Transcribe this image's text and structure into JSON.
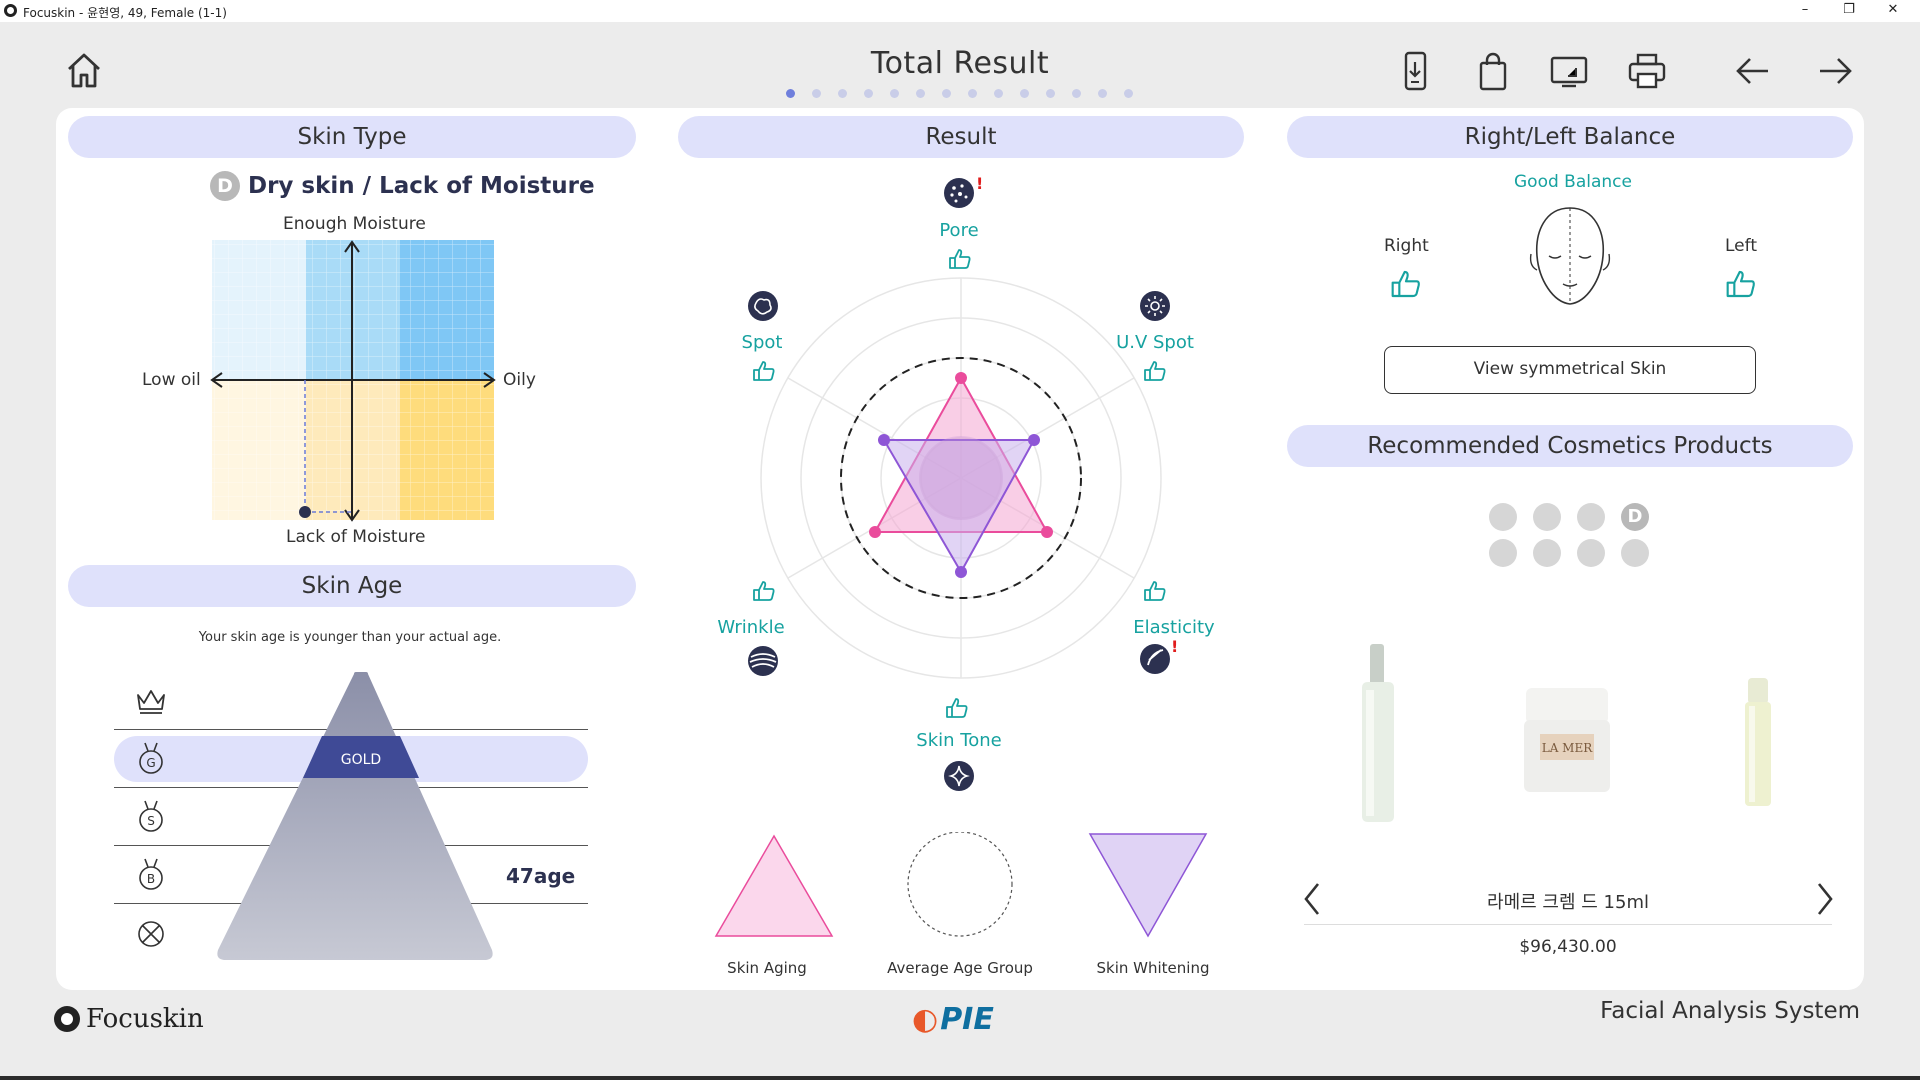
{
  "window": {
    "title": "Focuskin - 윤현영, 49, Female (1-1)",
    "minimize": "–",
    "maximize": "❐",
    "close": "✕"
  },
  "header": {
    "title": "Total Result",
    "page_count": 14,
    "active_page": 1
  },
  "skin_type": {
    "header": "Skin Type",
    "badge": "D",
    "result": "Dry skin / Lack of Moisture",
    "top_label": "Enough Moisture",
    "bottom_label": "Lack of Moisture",
    "left_label": "Low oil",
    "right_label": "Oily"
  },
  "skin_age": {
    "header": "Skin Age",
    "message": "Your skin age is younger than your actual age.",
    "tier_label": "GOLD",
    "age_value": "47age",
    "tier_badges": [
      "G",
      "S",
      "B"
    ]
  },
  "result": {
    "header": "Result",
    "metrics": {
      "pore": "Pore",
      "spot": "Spot",
      "uv_spot": "U.V Spot",
      "wrinkle": "Wrinkle",
      "elasticity": "Elasticity",
      "skin_tone": "Skin Tone"
    },
    "bottom": {
      "skin_aging": "Skin Aging",
      "average_age_group": "Average Age Group",
      "skin_whitening": "Skin Whitening"
    }
  },
  "balance": {
    "header": "Right/Left Balance",
    "status": "Good Balance",
    "right_label": "Right",
    "left_label": "Left",
    "button": "View symmetrical Skin"
  },
  "recommend": {
    "header": "Recommended Cosmetics Products",
    "category_badge": "D",
    "product_name": "라메르 크렘 드 15ml",
    "product_price": "$96,430.00",
    "jar_brand": "LA MER"
  },
  "footer": {
    "brand": "Focuskin",
    "partner": "PIE",
    "system_name": "Facial Analysis System"
  },
  "colors": {
    "accent": "#dfe1fb",
    "teal": "#17a2a0",
    "pink": "#ea4c9c",
    "purple": "#8e56d6",
    "navy": "#2c3150"
  }
}
